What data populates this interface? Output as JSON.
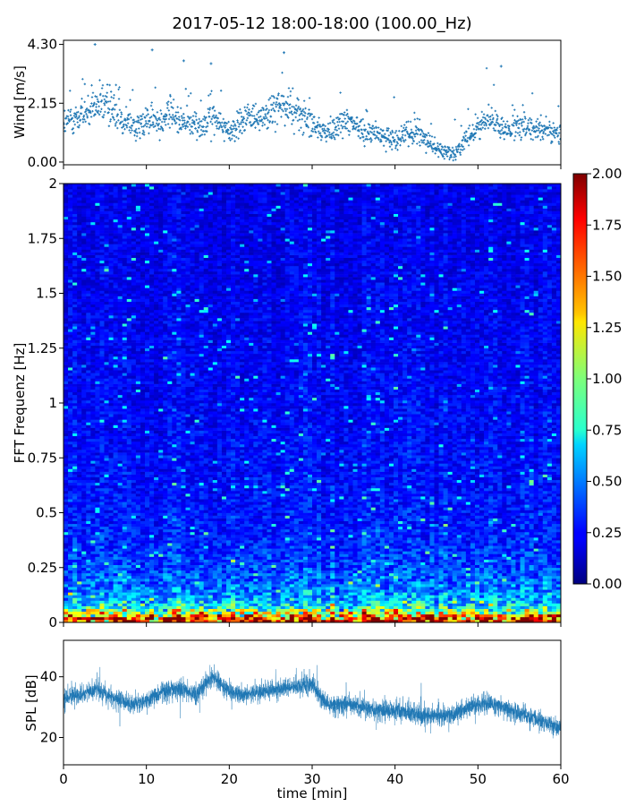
{
  "figure": {
    "title": "2017-05-12 18:00-18:00 (100.00_Hz)"
  },
  "chart_data": [
    {
      "id": "wind",
      "type": "scatter",
      "ylabel": "Wind [m/s]",
      "xlabel": "",
      "xlim": [
        0,
        60
      ],
      "ylim": [
        -0.1,
        4.45
      ],
      "yticks": [
        "0.00",
        "2.15",
        "4.30"
      ],
      "ytick_values": [
        0.0,
        2.15,
        4.3
      ],
      "color": "#1f77b4",
      "grid": false,
      "trend": {
        "x": [
          0,
          3,
          5,
          8,
          11,
          13,
          16,
          18,
          20,
          22,
          24,
          26,
          28,
          30,
          32,
          34,
          36,
          38,
          40,
          42,
          44,
          45,
          47,
          49,
          51,
          53,
          55,
          57,
          60
        ],
        "y": [
          1.4,
          1.8,
          2.2,
          1.3,
          1.5,
          1.7,
          1.3,
          1.6,
          1.1,
          1.7,
          1.6,
          2.0,
          1.9,
          1.3,
          1.1,
          1.5,
          1.2,
          1.0,
          0.9,
          1.1,
          0.8,
          0.5,
          0.3,
          0.9,
          1.6,
          1.2,
          1.2,
          1.3,
          0.9
        ]
      },
      "peaks": [
        {
          "x": 3.8,
          "y": 4.3
        },
        {
          "x": 10.7,
          "y": 4.1
        },
        {
          "x": 26.6,
          "y": 4.0
        },
        {
          "x": 52.8,
          "y": 3.5
        },
        {
          "x": 17.8,
          "y": 3.6
        },
        {
          "x": 14.5,
          "y": 3.7
        }
      ]
    },
    {
      "id": "spectrogram",
      "type": "heatmap",
      "ylabel": "FFT Frequenz [Hz]",
      "xlabel": "",
      "xlim": [
        0,
        60
      ],
      "ylim": [
        0,
        2
      ],
      "yticks": [
        "0",
        "0.25",
        "0.5",
        "0.75",
        "1",
        "1.25",
        "1.5",
        "1.75",
        "2"
      ],
      "ytick_values": [
        0,
        0.25,
        0.5,
        0.75,
        1,
        1.25,
        1.5,
        1.75,
        2
      ],
      "colormap": "jet",
      "colorbar": {
        "range": [
          0,
          2
        ],
        "ticks": [
          "0.00",
          "0.25",
          "0.50",
          "0.75",
          "1.00",
          "1.25",
          "1.50",
          "1.75",
          "2.00"
        ],
        "tick_values": [
          0,
          0.25,
          0.5,
          0.75,
          1.0,
          1.25,
          1.5,
          1.75,
          2.0
        ]
      },
      "level_profile": {
        "freq": [
          0,
          0.02,
          0.04,
          0.06,
          0.1,
          0.15,
          0.25,
          0.4,
          0.6,
          1.0,
          1.5,
          2.0
        ],
        "level": [
          1.7,
          1.5,
          1.1,
          0.8,
          0.6,
          0.5,
          0.38,
          0.3,
          0.27,
          0.24,
          0.22,
          0.2
        ]
      }
    },
    {
      "id": "spl",
      "type": "line",
      "ylabel": "SPL [dB]",
      "xlabel": "time [min]",
      "xlim": [
        0,
        60
      ],
      "ylim": [
        11,
        52
      ],
      "yticks": [
        "20",
        "40"
      ],
      "ytick_values": [
        20,
        40
      ],
      "xticks": [
        "0",
        "10",
        "20",
        "30",
        "40",
        "50",
        "60"
      ],
      "xtick_values": [
        0,
        10,
        20,
        30,
        40,
        50,
        60
      ],
      "color": "#1f77b4",
      "grid": false,
      "series": [
        {
          "x": [
            0,
            2,
            4,
            6,
            8,
            10,
            12,
            14,
            16,
            18,
            20,
            22,
            24,
            26,
            28,
            30,
            31,
            32,
            34,
            36,
            38,
            40,
            42,
            44,
            46,
            48,
            50,
            52,
            54,
            56,
            58,
            60
          ],
          "y": [
            33,
            34,
            36,
            33,
            31,
            32,
            35,
            36,
            34,
            40,
            35,
            34,
            35,
            36,
            37,
            38,
            33,
            31,
            31,
            30,
            29,
            29,
            28,
            27,
            27,
            29,
            31,
            31,
            29,
            27,
            25,
            23
          ]
        }
      ]
    }
  ]
}
